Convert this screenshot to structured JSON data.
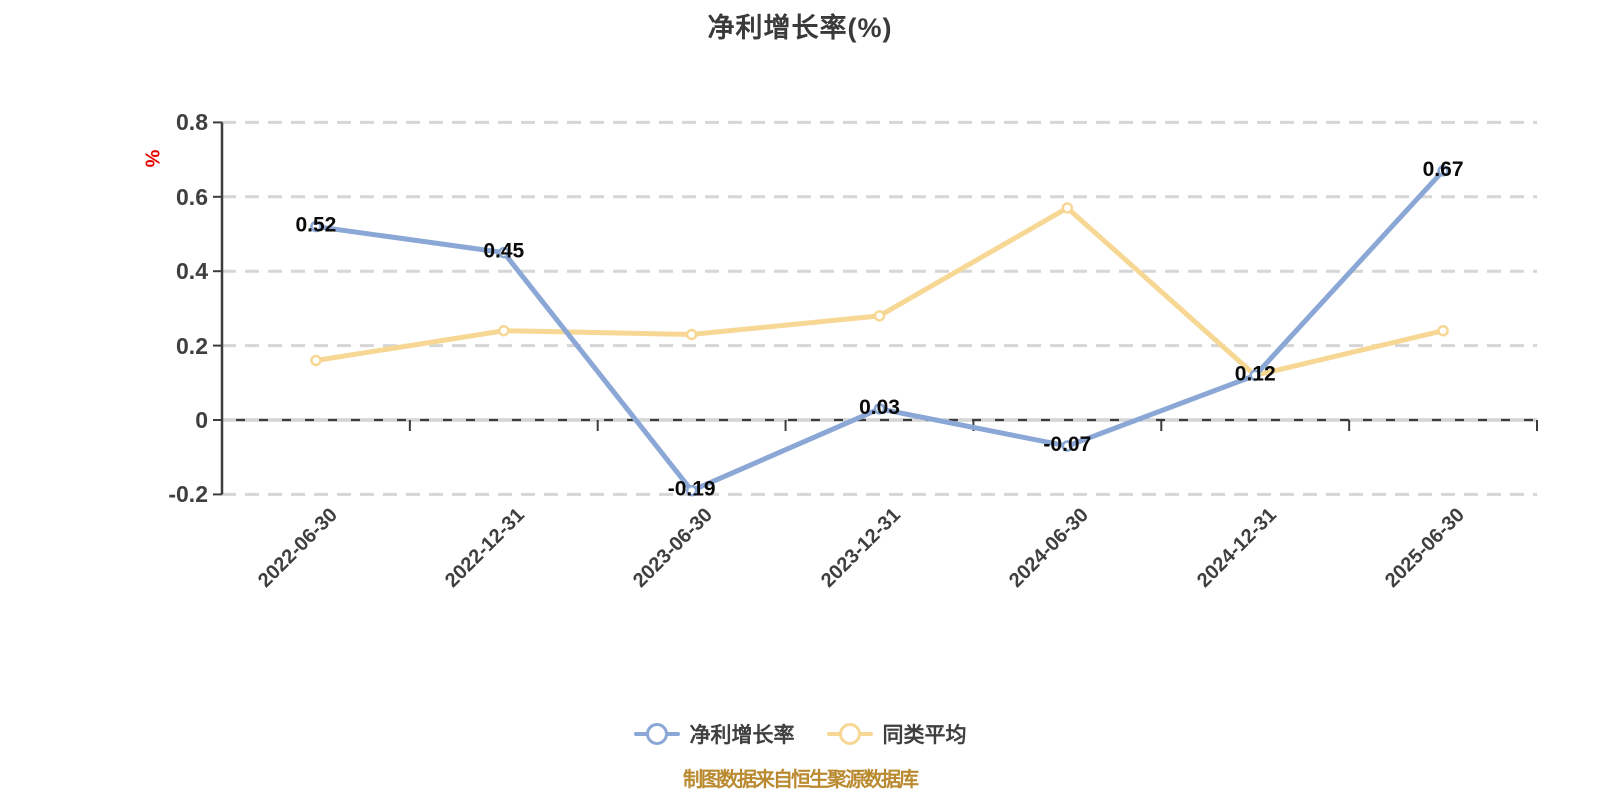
{
  "page": {
    "background": "#FFFFFF"
  },
  "header": {
    "title": "净利增长率(%)"
  },
  "y_axis": {
    "unit_label": "%",
    "unit_color": "#E60000",
    "ticks": [
      {
        "label": "0.8",
        "value": 0.8
      },
      {
        "label": "0.6",
        "value": 0.6
      },
      {
        "label": "0.4",
        "value": 0.4
      },
      {
        "label": "0.2",
        "value": 0.2
      },
      {
        "label": "0",
        "value": 0
      },
      {
        "label": "-0.2",
        "value": -0.2
      }
    ]
  },
  "legend": {
    "items": [
      {
        "label": "净利增长率",
        "color": "#8AA7D6"
      },
      {
        "label": "同类平均",
        "color": "#F7D794"
      }
    ]
  },
  "footer": {
    "caption": "制图数据来自恒生聚源数据库",
    "color": "#BA8A30"
  },
  "chart_data": {
    "type": "line",
    "title": "净利增长率(%)",
    "categories": [
      "2022-06-30",
      "2022-12-31",
      "2023-06-30",
      "2023-12-31",
      "2024-06-30",
      "2024-12-31",
      "2025-06-30"
    ],
    "series": [
      {
        "name": "净利增长率",
        "color": "#8AA7D6",
        "values": [
          0.52,
          0.45,
          -0.19,
          0.03,
          -0.07,
          0.12,
          0.67
        ],
        "point_labels": [
          "0.52",
          "0.45",
          "-0.19",
          "0.03",
          "-0.07",
          "0.12",
          "0.67"
        ],
        "labels_shown": true,
        "marker": "circle-white-fill"
      },
      {
        "name": "同类平均",
        "color": "#F7D794",
        "values": [
          0.16,
          0.24,
          0.23,
          0.28,
          0.57,
          0.12,
          0.24
        ],
        "point_labels": [],
        "labels_shown": false,
        "marker": "circle-white-fill"
      }
    ],
    "xlabel": "",
    "ylabel": "%",
    "ylim": [
      -0.2,
      0.8
    ],
    "ytick_interval": 0.2,
    "grid": {
      "horizontal": true,
      "vertical": false,
      "style": "dashed",
      "color": "#D6D6D6"
    },
    "axis_color": "#3C3C3C",
    "label_color": "#0A0A0A",
    "legend_position": "bottom"
  }
}
